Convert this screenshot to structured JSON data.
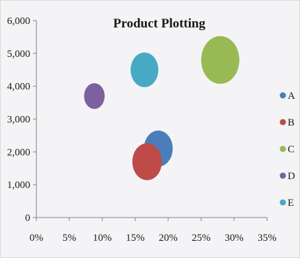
{
  "chart_data": {
    "type": "bubble",
    "title": "Product Plotting",
    "xlabel": "",
    "ylabel": "",
    "xlim": [
      0,
      0.35
    ],
    "ylim": [
      0,
      6000
    ],
    "x_ticks": [
      "0%",
      "5%",
      "10%",
      "15%",
      "20%",
      "25%",
      "30%",
      "35%"
    ],
    "y_ticks": [
      "0",
      "1,000",
      "2,000",
      "3,000",
      "4,000",
      "5,000",
      "6,000"
    ],
    "grid": false,
    "legend_position": "right",
    "series": [
      {
        "name": "A",
        "x": 0.185,
        "y": 2100,
        "size": 1.08,
        "color": "#4a7ebb"
      },
      {
        "name": "B",
        "x": 0.168,
        "y": 1700,
        "size": 1.13,
        "color": "#be4b48"
      },
      {
        "name": "C",
        "x": 0.279,
        "y": 4800,
        "size": 1.89,
        "color": "#98b954"
      },
      {
        "name": "D",
        "x": 0.088,
        "y": 3700,
        "size": 0.55,
        "color": "#7d60a0"
      },
      {
        "name": "E",
        "x": 0.164,
        "y": 4500,
        "size": 1.0,
        "color": "#46aac5"
      }
    ]
  }
}
